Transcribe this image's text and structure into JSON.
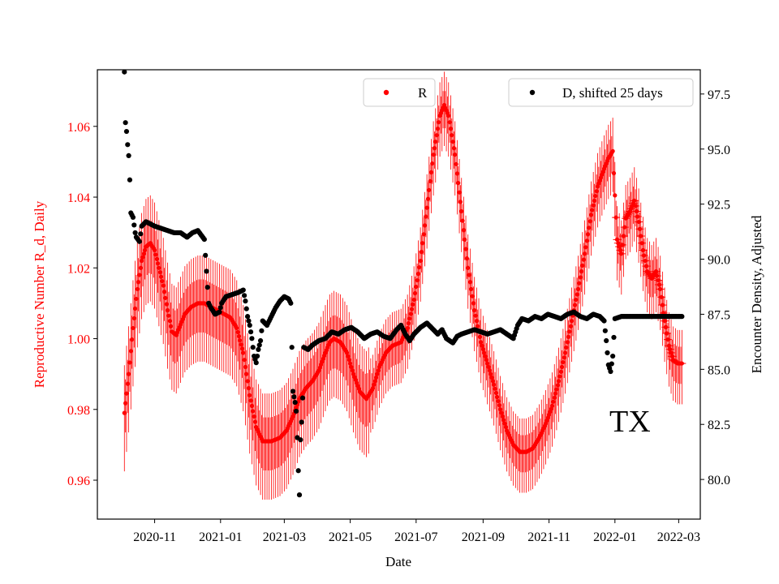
{
  "chart_data": {
    "type": "scatter",
    "xlabel": "Date",
    "ylabel_left": "Reproductive Number R_d, Daily",
    "ylabel_right": "Encounter Density, Adjusted",
    "annotation": "TX",
    "x_ticks": [
      "2020-11",
      "2021-01",
      "2021-03",
      "2021-05",
      "2021-07",
      "2021-09",
      "2021-11",
      "2022-01",
      "2022-03"
    ],
    "x_tick_days": [
      0,
      61,
      120,
      181,
      242,
      304,
      365,
      426,
      485
    ],
    "xlim_days": [
      -53,
      505
    ],
    "y_left_ticks": [
      "0.96",
      "0.98",
      "1.00",
      "1.02",
      "1.04",
      "1.06"
    ],
    "y_left_values": [
      0.96,
      0.98,
      1.0,
      1.02,
      1.04,
      1.06
    ],
    "ylim_left": [
      0.949,
      1.076
    ],
    "y_right_ticks": [
      "80.0",
      "82.5",
      "85.0",
      "87.5",
      "90.0",
      "92.5",
      "95.0",
      "97.5"
    ],
    "y_right_values": [
      80.0,
      82.5,
      85.0,
      87.5,
      90.0,
      92.5,
      95.0,
      97.5
    ],
    "ylim_right": [
      78.2,
      98.6
    ],
    "colors": {
      "R": "#ff0000",
      "D": "#000000",
      "left_axis": "#ff0000",
      "right_axis": "#000000"
    },
    "series": [
      {
        "name": "R",
        "legend_label": "R",
        "axis": "left",
        "color": "#ff0000",
        "points_day_value": [
          [
            -28,
            0.979
          ],
          [
            -24,
            0.99
          ],
          [
            -20,
            1.003
          ],
          [
            -16,
            1.014
          ],
          [
            -12,
            1.022
          ],
          [
            -8,
            1.026
          ],
          [
            -4,
            1.027
          ],
          [
            0,
            1.025
          ],
          [
            4,
            1.02
          ],
          [
            8,
            1.015
          ],
          [
            12,
            1.008
          ],
          [
            16,
            1.002
          ],
          [
            20,
            1.001
          ],
          [
            24,
            1.004
          ],
          [
            28,
            1.007
          ],
          [
            34,
            1.009
          ],
          [
            40,
            1.01
          ],
          [
            46,
            1.01
          ],
          [
            52,
            1.009
          ],
          [
            58,
            1.008
          ],
          [
            64,
            1.007
          ],
          [
            70,
            1.006
          ],
          [
            76,
            1.003
          ],
          [
            82,
            0.996
          ],
          [
            88,
            0.984
          ],
          [
            94,
            0.975
          ],
          [
            100,
            0.971
          ],
          [
            108,
            0.971
          ],
          [
            116,
            0.972
          ],
          [
            122,
            0.974
          ],
          [
            128,
            0.978
          ],
          [
            134,
            0.983
          ],
          [
            140,
            0.986
          ],
          [
            146,
            0.988
          ],
          [
            152,
            0.991
          ],
          [
            158,
            0.996
          ],
          [
            162,
            0.999
          ],
          [
            166,
            1.0
          ],
          [
            172,
            0.999
          ],
          [
            178,
            0.996
          ],
          [
            184,
            0.99
          ],
          [
            190,
            0.985
          ],
          [
            196,
            0.983
          ],
          [
            202,
            0.986
          ],
          [
            208,
            0.992
          ],
          [
            214,
            0.996
          ],
          [
            220,
            0.998
          ],
          [
            228,
            0.999
          ],
          [
            234,
            1.003
          ],
          [
            240,
            1.011
          ],
          [
            246,
            1.022
          ],
          [
            252,
            1.037
          ],
          [
            258,
            1.052
          ],
          [
            264,
            1.063
          ],
          [
            268,
            1.066
          ],
          [
            272,
            1.063
          ],
          [
            278,
            1.052
          ],
          [
            284,
            1.036
          ],
          [
            290,
            1.02
          ],
          [
            296,
            1.008
          ],
          [
            302,
            0.999
          ],
          [
            308,
            0.993
          ],
          [
            314,
            0.987
          ],
          [
            320,
            0.98
          ],
          [
            326,
            0.974
          ],
          [
            332,
            0.97
          ],
          [
            338,
            0.968
          ],
          [
            344,
            0.968
          ],
          [
            350,
            0.969
          ],
          [
            356,
            0.972
          ],
          [
            362,
            0.976
          ],
          [
            368,
            0.981
          ],
          [
            374,
            0.988
          ],
          [
            380,
            0.996
          ],
          [
            386,
            1.005
          ],
          [
            392,
            1.014
          ],
          [
            398,
            1.024
          ],
          [
            404,
            1.035
          ],
          [
            410,
            1.043
          ],
          [
            416,
            1.048
          ],
          [
            420,
            1.051
          ],
          [
            424,
            1.053
          ],
          [
            428,
            1.028
          ],
          [
            432,
            1.024
          ],
          [
            436,
            1.034
          ],
          [
            440,
            1.036
          ],
          [
            444,
            1.039
          ],
          [
            448,
            1.033
          ],
          [
            452,
            1.025
          ],
          [
            456,
            1.019
          ],
          [
            460,
            1.017
          ],
          [
            464,
            1.019
          ],
          [
            468,
            1.014
          ],
          [
            472,
            1.005
          ],
          [
            476,
            0.998
          ],
          [
            480,
            0.994
          ],
          [
            484,
            0.993
          ],
          [
            488,
            0.993
          ]
        ]
      },
      {
        "name": "D, shifted 25 days",
        "legend_label": "D, shifted 25 days",
        "axis": "right",
        "color": "#000000",
        "points_day_value": [
          [
            -28,
            98.5
          ],
          [
            -27,
            96.2
          ],
          [
            -26,
            95.8
          ],
          [
            -25,
            95.2
          ],
          [
            -24,
            94.7
          ],
          [
            -23,
            93.6
          ],
          [
            -22,
            92.1
          ],
          [
            -20,
            91.9
          ],
          [
            -18,
            91.2
          ],
          [
            -17,
            91.0
          ],
          [
            -14,
            90.8
          ],
          [
            -12,
            91.5
          ],
          [
            -8,
            91.7
          ],
          [
            -4,
            91.6
          ],
          [
            0,
            91.5
          ],
          [
            6,
            91.4
          ],
          [
            12,
            91.3
          ],
          [
            18,
            91.2
          ],
          [
            24,
            91.2
          ],
          [
            30,
            91.0
          ],
          [
            35,
            91.2
          ],
          [
            40,
            91.3
          ],
          [
            46,
            90.9
          ],
          [
            50,
            88.0
          ],
          [
            52,
            87.8
          ],
          [
            56,
            87.5
          ],
          [
            60,
            87.6
          ],
          [
            62,
            88.0
          ],
          [
            66,
            88.3
          ],
          [
            72,
            88.4
          ],
          [
            78,
            88.5
          ],
          [
            82,
            88.6
          ],
          [
            84,
            88.1
          ],
          [
            86,
            87.4
          ],
          [
            88,
            87.0
          ],
          [
            90,
            86.4
          ],
          [
            92,
            85.6
          ],
          [
            94,
            85.3
          ],
          [
            96,
            85.9
          ],
          [
            98,
            86.3
          ],
          [
            100,
            87.2
          ],
          [
            104,
            87.0
          ],
          [
            108,
            87.4
          ],
          [
            112,
            87.8
          ],
          [
            116,
            88.1
          ],
          [
            120,
            88.3
          ],
          [
            124,
            88.2
          ],
          [
            126,
            88.0
          ],
          [
            128,
            84.0
          ],
          [
            130,
            83.5
          ],
          [
            131,
            83.1
          ],
          [
            132,
            81.9
          ],
          [
            133,
            80.4
          ],
          [
            134,
            79.3
          ],
          [
            135,
            81.8
          ],
          [
            136,
            82.6
          ],
          [
            137,
            83.7
          ],
          [
            138,
            86.0
          ],
          [
            142,
            85.9
          ],
          [
            146,
            86.1
          ],
          [
            152,
            86.3
          ],
          [
            158,
            86.4
          ],
          [
            164,
            86.7
          ],
          [
            170,
            86.6
          ],
          [
            176,
            86.8
          ],
          [
            182,
            86.9
          ],
          [
            188,
            86.7
          ],
          [
            194,
            86.4
          ],
          [
            200,
            86.6
          ],
          [
            206,
            86.7
          ],
          [
            212,
            86.5
          ],
          [
            218,
            86.4
          ],
          [
            224,
            86.8
          ],
          [
            228,
            87.0
          ],
          [
            232,
            86.6
          ],
          [
            236,
            86.3
          ],
          [
            240,
            86.6
          ],
          [
            246,
            86.9
          ],
          [
            252,
            87.1
          ],
          [
            258,
            86.8
          ],
          [
            262,
            86.6
          ],
          [
            266,
            86.8
          ],
          [
            270,
            86.4
          ],
          [
            276,
            86.2
          ],
          [
            280,
            86.5
          ],
          [
            284,
            86.6
          ],
          [
            290,
            86.7
          ],
          [
            296,
            86.8
          ],
          [
            302,
            86.7
          ],
          [
            308,
            86.6
          ],
          [
            314,
            86.7
          ],
          [
            320,
            86.8
          ],
          [
            326,
            86.6
          ],
          [
            332,
            86.4
          ],
          [
            336,
            87.0
          ],
          [
            340,
            87.3
          ],
          [
            346,
            87.2
          ],
          [
            352,
            87.4
          ],
          [
            358,
            87.3
          ],
          [
            364,
            87.5
          ],
          [
            370,
            87.4
          ],
          [
            376,
            87.3
          ],
          [
            382,
            87.5
          ],
          [
            388,
            87.6
          ],
          [
            394,
            87.4
          ],
          [
            400,
            87.3
          ],
          [
            406,
            87.5
          ],
          [
            412,
            87.4
          ],
          [
            416,
            87.2
          ],
          [
            418,
            86.3
          ],
          [
            420,
            85.2
          ],
          [
            422,
            84.9
          ],
          [
            424,
            85.6
          ],
          [
            426,
            87.3
          ],
          [
            432,
            87.4
          ],
          [
            440,
            87.4
          ],
          [
            448,
            87.4
          ],
          [
            456,
            87.4
          ],
          [
            464,
            87.4
          ],
          [
            472,
            87.4
          ],
          [
            480,
            87.4
          ],
          [
            488,
            87.4
          ]
        ]
      }
    ]
  }
}
